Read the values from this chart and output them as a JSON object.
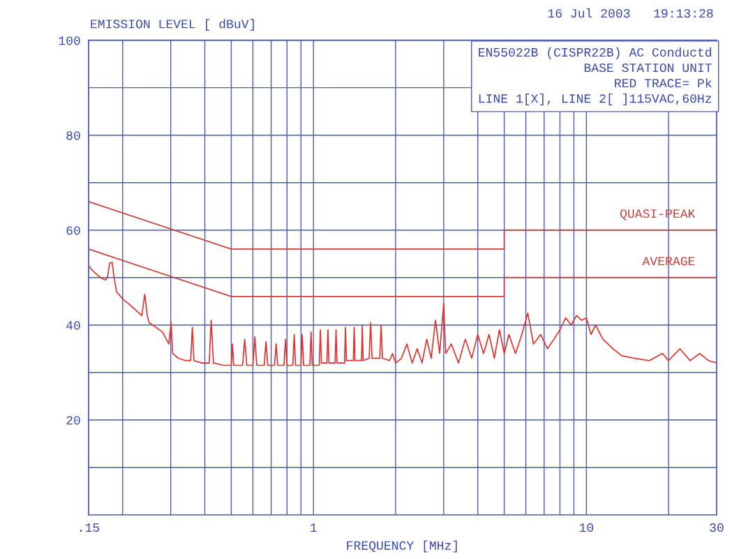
{
  "chart_data": {
    "type": "line",
    "ylabel": "EMISSION LEVEL [ dBuV]",
    "xlabel": "FREQUENCY [MHz]",
    "annotations": [
      "16 Jul 2003   19:13:28",
      "EN55022B (CISPR22B) AC Conductd\nBASE STATION UNIT\nRED TRACE= Pk\nLINE 1[X], LINE 2[ ]115VAC,60Hz"
    ],
    "log": "x",
    "grid": true,
    "xlim": [
      0.15,
      30
    ],
    "ylim": [
      0,
      100
    ],
    "xticks": [
      {
        "value": 0.15,
        "label": ".15"
      },
      {
        "value": 0.2,
        "label": null
      },
      {
        "value": 0.3,
        "label": null
      },
      {
        "value": 0.4,
        "label": null
      },
      {
        "value": 0.5,
        "label": null
      },
      {
        "value": 0.6,
        "label": null
      },
      {
        "value": 0.7,
        "label": null
      },
      {
        "value": 0.8,
        "label": null
      },
      {
        "value": 0.9,
        "label": null
      },
      1,
      {
        "value": 2,
        "label": null
      },
      {
        "value": 3,
        "label": null
      },
      {
        "value": 4,
        "label": null
      },
      {
        "value": 5,
        "label": null
      },
      {
        "value": 6,
        "label": null
      },
      {
        "value": 7,
        "label": null
      },
      {
        "value": 8,
        "label": null
      },
      {
        "value": 9,
        "label": null
      },
      10,
      {
        "value": 20,
        "label": null
      },
      30
    ],
    "yticks": [
      {
        "value": 0,
        "label": null
      },
      {
        "value": 10,
        "label": null
      },
      20,
      {
        "value": 30,
        "label": null
      },
      40,
      {
        "value": 50,
        "label": null
      },
      60,
      {
        "value": 70,
        "label": null
      },
      80,
      {
        "value": 90,
        "label": null
      },
      100
    ],
    "series": [
      {
        "name": "QUASI-PEAK",
        "color": "#c8403c",
        "x": [
          0.15,
          0.5,
          5,
          5,
          30
        ],
        "values": [
          66,
          56,
          56,
          60,
          60
        ]
      },
      {
        "name": "AVERAGE",
        "color": "#c8403c",
        "x": [
          0.15,
          0.5,
          5,
          5,
          30
        ],
        "values": [
          56,
          46,
          46,
          50,
          50
        ]
      },
      {
        "color": "#e0302c",
        "x": [
          0.15,
          0.155,
          0.162,
          0.168,
          0.173,
          0.176,
          0.179,
          0.183,
          0.186,
          0.19,
          0.2,
          0.21,
          0.225,
          0.235,
          0.241,
          0.246,
          0.25,
          0.265,
          0.28,
          0.295,
          0.301,
          0.305,
          0.32,
          0.34,
          0.355,
          0.36,
          0.365,
          0.39,
          0.415,
          0.422,
          0.43,
          0.47,
          0.5,
          0.505,
          0.51,
          0.55,
          0.56,
          0.57,
          0.6,
          0.61,
          0.62,
          0.66,
          0.67,
          0.68,
          0.72,
          0.73,
          0.74,
          0.78,
          0.79,
          0.8,
          0.84,
          0.85,
          0.86,
          0.9,
          0.91,
          0.92,
          0.97,
          0.98,
          0.99,
          1.05,
          1.06,
          1.07,
          1.12,
          1.13,
          1.14,
          1.2,
          1.21,
          1.22,
          1.3,
          1.31,
          1.32,
          1.4,
          1.41,
          1.42,
          1.5,
          1.51,
          1.52,
          1.6,
          1.62,
          1.64,
          1.75,
          1.77,
          1.79,
          1.9,
          1.95,
          2.0,
          2.1,
          2.2,
          2.3,
          2.4,
          2.5,
          2.6,
          2.7,
          2.8,
          2.9,
          3.0,
          3.05,
          3.2,
          3.4,
          3.6,
          3.8,
          4.0,
          4.2,
          4.4,
          4.6,
          4.8,
          5.0,
          5.2,
          5.5,
          5.8,
          6.1,
          6.4,
          6.8,
          7.2,
          7.6,
          8.0,
          8.4,
          8.8,
          9.2,
          9.6,
          10.0,
          10.4,
          10.8,
          11.5,
          12.5,
          13.5,
          15,
          17,
          19,
          20,
          22,
          24,
          26,
          28,
          30
        ],
        "values": [
          52.5,
          51.5,
          50.5,
          49.8,
          49.5,
          50,
          53,
          53.2,
          50,
          47,
          45.5,
          44.5,
          43,
          42,
          46.5,
          42,
          40.5,
          39.5,
          38.5,
          36,
          40.5,
          34,
          33,
          32.5,
          32.5,
          39.5,
          32.5,
          32,
          32,
          41,
          32,
          31.5,
          31.5,
          36,
          31.5,
          31.5,
          37,
          31.5,
          31.5,
          37.5,
          31.5,
          31.5,
          36.5,
          31.5,
          31.5,
          36,
          31.5,
          31.5,
          37,
          31.5,
          31.5,
          38,
          31.5,
          31.5,
          38,
          31.5,
          31.5,
          38.5,
          31.5,
          31.5,
          39,
          32,
          32,
          39,
          32,
          32,
          39,
          32,
          32,
          39.5,
          32.5,
          32.5,
          39.5,
          32.5,
          32.5,
          40,
          32.5,
          33,
          40.5,
          33,
          33,
          40,
          33,
          32.5,
          34,
          32,
          33,
          36,
          32,
          35,
          32,
          37,
          33,
          41,
          34,
          44.5,
          34,
          36,
          32,
          37,
          33,
          38,
          34,
          38,
          33,
          39,
          34,
          38,
          34,
          38,
          42.5,
          36,
          38,
          35,
          37,
          39,
          41.5,
          40,
          42,
          41,
          41.5,
          38,
          40,
          37,
          35,
          33.5,
          33,
          32.5,
          34,
          32.5,
          35,
          32.5,
          34,
          32.5,
          32
        ]
      }
    ]
  }
}
